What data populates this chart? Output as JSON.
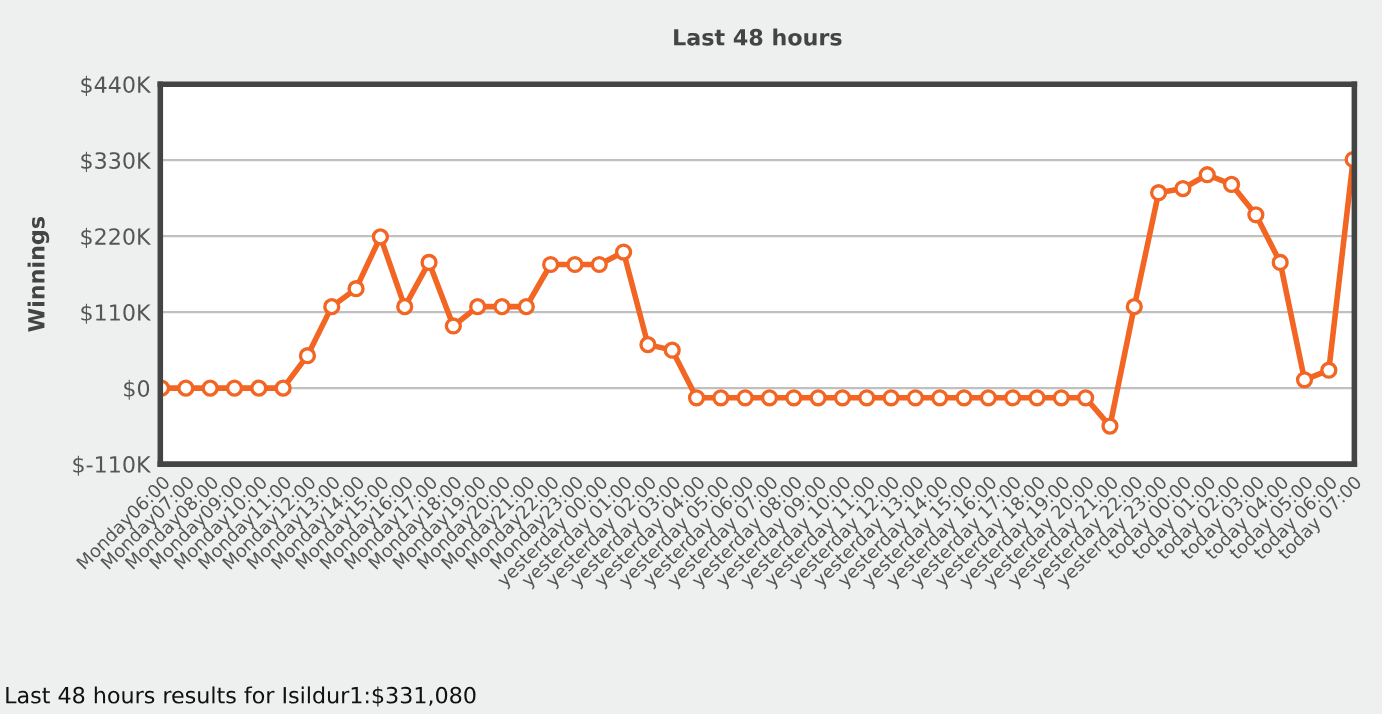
{
  "chart_data": {
    "type": "line",
    "title": "Last 48 hours",
    "ylabel": "Winnings",
    "annotations": [
      "Last 48 hours results for Isildur1:$331,080"
    ],
    "categories": [
      "Monday06:00",
      "Monday07:00",
      "Monday08:00",
      "Monday09:00",
      "Monday10:00",
      "Monday11:00",
      "Monday12:00",
      "Monday13:00",
      "Monday14:00",
      "Monday15:00",
      "Monday16:00",
      "Monday17:00",
      "Monday18:00",
      "Monday19:00",
      "Monday20:00",
      "Monday21:00",
      "Monday22:00",
      "Monday23:00",
      "yesterday 00:00",
      "yesterday 01:00",
      "yesterday 02:00",
      "yesterday 03:00",
      "yesterday 04:00",
      "yesterday 05:00",
      "yesterday 06:00",
      "yesterday 07:00",
      "yesterday 08:00",
      "yesterday 09:00",
      "yesterday 10:00",
      "yesterday 11:00",
      "yesterday 12:00",
      "yesterday 13:00",
      "yesterday 14:00",
      "yesterday 15:00",
      "yesterday 16:00",
      "yesterday 17:00",
      "yesterday 18:00",
      "yesterday 19:00",
      "yesterday 20:00",
      "yesterday 21:00",
      "yesterday 22:00",
      "yesterday 23:00",
      "today 00:00",
      "today 01:00",
      "today 02:00",
      "today 03:00",
      "today 04:00",
      "today 05:00",
      "today 06:00",
      "today 07:00"
    ],
    "series": [
      {
        "color": "#f26522",
        "values": [
          0,
          0,
          0,
          0,
          0,
          0,
          47,
          118,
          144,
          219,
          118,
          182,
          90,
          118,
          118,
          118,
          179,
          179,
          179,
          197,
          63,
          55,
          -14,
          -14,
          -14,
          -14,
          -14,
          -14,
          -14,
          -14,
          -14,
          -14,
          -14,
          -14,
          -14,
          -14,
          -14,
          -14,
          -14,
          -55,
          118,
          283,
          289,
          309,
          295,
          251,
          182,
          12,
          26,
          331
        ]
      }
    ],
    "ylim": [
      -110,
      440
    ],
    "yticks": [
      {
        "value": -110,
        "label": "$-110K"
      },
      {
        "value": 0,
        "label": "$0"
      },
      {
        "value": 110,
        "label": "$110K"
      },
      {
        "value": 220,
        "label": "$220K"
      },
      {
        "value": 330,
        "label": "$330K"
      },
      {
        "value": 440,
        "label": "$440K"
      }
    ],
    "grid": "y",
    "marker": "circle",
    "line_style": "solid",
    "legend": false
  }
}
